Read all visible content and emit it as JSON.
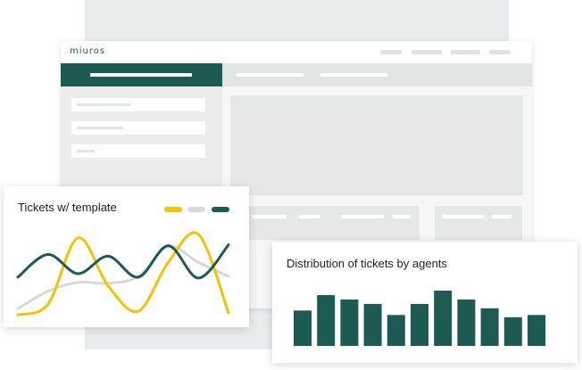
{
  "app": {
    "logo_text": "miuros"
  },
  "chart_data": [
    {
      "type": "line",
      "title": "Tickets w/ template",
      "x": [
        0,
        1,
        2,
        3,
        4,
        5,
        6,
        7
      ],
      "series": [
        {
          "color": "#f2c400",
          "values": [
            2,
            14,
            90,
            35,
            6,
            62,
            94,
            4
          ]
        },
        {
          "color": "#d7d9d9",
          "values": [
            9,
            29,
            39,
            38,
            46,
            80,
            62,
            46
          ]
        },
        {
          "color": "#1d5a52",
          "values": [
            45,
            71,
            49,
            69,
            45,
            81,
            44,
            82
          ]
        }
      ],
      "legend_placement": "top-right",
      "grid": false
    },
    {
      "type": "bar",
      "title": "Distribution of tickets by agents",
      "categories": [
        "",
        "",
        "",
        "",
        "",
        "",
        "",
        "",
        "",
        "",
        "",
        ""
      ],
      "values": [
        32,
        46,
        42,
        38,
        28,
        38,
        50,
        42,
        34,
        26,
        28,
        0
      ],
      "color": "#1d5a52",
      "grid": false
    }
  ]
}
